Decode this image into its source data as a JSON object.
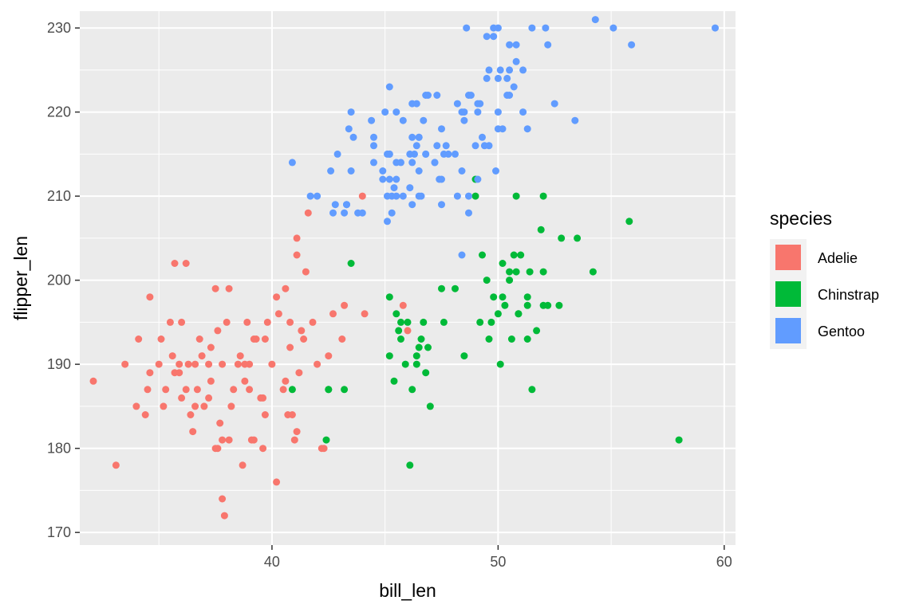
{
  "chart_data": {
    "type": "scatter",
    "xlabel": "bill_len",
    "ylabel": "flipper_len",
    "xlim": [
      31.5,
      60.5
    ],
    "ylim": [
      168.5,
      232
    ],
    "x_ticks": [
      40,
      50,
      60
    ],
    "y_ticks": [
      170,
      180,
      190,
      200,
      210,
      220,
      230
    ],
    "grid": true,
    "legend": {
      "title": "species",
      "position": "right"
    },
    "series": [
      {
        "name": "Adelie",
        "color": "#F8766D",
        "points": [
          [
            32.1,
            188
          ],
          [
            33.1,
            178
          ],
          [
            33.5,
            190
          ],
          [
            34.0,
            185
          ],
          [
            34.1,
            193
          ],
          [
            34.4,
            184
          ],
          [
            34.5,
            187
          ],
          [
            34.6,
            198
          ],
          [
            34.6,
            189
          ],
          [
            35.0,
            190
          ],
          [
            35.1,
            193
          ],
          [
            35.2,
            185
          ],
          [
            35.3,
            187
          ],
          [
            35.5,
            195
          ],
          [
            35.6,
            191
          ],
          [
            35.7,
            189
          ],
          [
            35.9,
            190
          ],
          [
            36.0,
            195
          ],
          [
            36.0,
            186
          ],
          [
            36.2,
            187
          ],
          [
            36.2,
            202
          ],
          [
            36.3,
            190
          ],
          [
            36.4,
            184
          ],
          [
            36.5,
            182
          ],
          [
            36.6,
            185
          ],
          [
            36.7,
            187
          ],
          [
            36.8,
            193
          ],
          [
            37.0,
            185
          ],
          [
            37.2,
            190
          ],
          [
            37.3,
            192
          ],
          [
            37.5,
            199
          ],
          [
            37.6,
            194
          ],
          [
            37.7,
            183
          ],
          [
            37.8,
            181
          ],
          [
            37.8,
            174
          ],
          [
            37.9,
            172
          ],
          [
            38.0,
            195
          ],
          [
            38.1,
            181
          ],
          [
            38.2,
            185
          ],
          [
            38.5,
            190
          ],
          [
            38.6,
            191
          ],
          [
            38.8,
            188
          ],
          [
            39.0,
            190
          ],
          [
            39.2,
            181
          ],
          [
            39.3,
            193
          ],
          [
            39.5,
            186
          ],
          [
            39.7,
            184
          ],
          [
            39.8,
            195
          ],
          [
            40.0,
            190
          ],
          [
            40.2,
            176
          ],
          [
            40.3,
            196
          ],
          [
            40.5,
            187
          ],
          [
            40.6,
            188
          ],
          [
            40.8,
            195
          ],
          [
            40.9,
            184
          ],
          [
            41.0,
            181
          ],
          [
            41.1,
            205
          ],
          [
            41.3,
            194
          ],
          [
            41.5,
            201
          ],
          [
            41.8,
            195
          ],
          [
            42.0,
            190
          ],
          [
            42.2,
            180
          ],
          [
            42.5,
            191
          ],
          [
            42.7,
            196
          ],
          [
            43.2,
            197
          ],
          [
            44.1,
            196
          ],
          [
            41.1,
            182
          ],
          [
            37.6,
            180
          ],
          [
            40.2,
            198
          ],
          [
            41.2,
            189
          ],
          [
            36.6,
            190
          ],
          [
            38.9,
            195
          ],
          [
            39.0,
            187
          ],
          [
            40.6,
            199
          ],
          [
            40.7,
            184
          ],
          [
            41.4,
            193
          ],
          [
            37.3,
            188
          ],
          [
            35.9,
            189
          ],
          [
            39.6,
            186
          ],
          [
            38.7,
            178
          ],
          [
            36.9,
            191
          ],
          [
            37.2,
            186
          ],
          [
            39.1,
            181
          ],
          [
            38.3,
            187
          ],
          [
            41.1,
            203
          ],
          [
            44.0,
            210
          ],
          [
            46.0,
            194
          ],
          [
            45.8,
            197
          ],
          [
            39.6,
            180
          ],
          [
            39.7,
            193
          ],
          [
            35.7,
            202
          ],
          [
            41.6,
            208
          ],
          [
            42.3,
            180
          ],
          [
            43.1,
            193
          ],
          [
            37.8,
            190
          ],
          [
            38.1,
            199
          ],
          [
            38.8,
            190
          ],
          [
            40.8,
            192
          ],
          [
            39.2,
            193
          ],
          [
            37.5,
            180
          ]
        ]
      },
      {
        "name": "Chinstrap",
        "color": "#00BA38",
        "points": [
          [
            46.5,
            192
          ],
          [
            50.0,
            196
          ],
          [
            51.3,
            193
          ],
          [
            45.4,
            188
          ],
          [
            52.7,
            197
          ],
          [
            45.2,
            198
          ],
          [
            46.1,
            178
          ],
          [
            51.3,
            197
          ],
          [
            46.0,
            195
          ],
          [
            51.3,
            198
          ],
          [
            46.6,
            193
          ],
          [
            51.7,
            194
          ],
          [
            47.0,
            185
          ],
          [
            52.0,
            201
          ],
          [
            45.9,
            190
          ],
          [
            50.5,
            201
          ],
          [
            50.3,
            197
          ],
          [
            58.0,
            181
          ],
          [
            46.4,
            190
          ],
          [
            49.2,
            195
          ],
          [
            42.4,
            181
          ],
          [
            48.5,
            191
          ],
          [
            43.2,
            187
          ],
          [
            50.6,
            193
          ],
          [
            46.7,
            195
          ],
          [
            52.0,
            197
          ],
          [
            50.5,
            200
          ],
          [
            49.5,
            200
          ],
          [
            46.4,
            191
          ],
          [
            52.8,
            205
          ],
          [
            40.9,
            187
          ],
          [
            54.2,
            201
          ],
          [
            42.5,
            187
          ],
          [
            51.0,
            203
          ],
          [
            49.7,
            195
          ],
          [
            47.5,
            199
          ],
          [
            47.6,
            195
          ],
          [
            52.0,
            210
          ],
          [
            46.9,
            192
          ],
          [
            53.5,
            205
          ],
          [
            49.0,
            210
          ],
          [
            46.2,
            187
          ],
          [
            50.9,
            196
          ],
          [
            45.5,
            196
          ],
          [
            50.9,
            196
          ],
          [
            50.8,
            210
          ],
          [
            50.1,
            190
          ],
          [
            49.0,
            212
          ],
          [
            51.5,
            187
          ],
          [
            49.8,
            198
          ],
          [
            48.1,
            199
          ],
          [
            51.4,
            201
          ],
          [
            45.7,
            193
          ],
          [
            50.7,
            203
          ],
          [
            42.5,
            187
          ],
          [
            52.2,
            197
          ],
          [
            45.2,
            191
          ],
          [
            49.3,
            203
          ],
          [
            50.2,
            202
          ],
          [
            45.6,
            194
          ],
          [
            51.9,
            206
          ],
          [
            46.8,
            189
          ],
          [
            45.7,
            195
          ],
          [
            55.8,
            207
          ],
          [
            43.5,
            202
          ],
          [
            49.6,
            193
          ],
          [
            50.8,
            201
          ],
          [
            50.2,
            198
          ]
        ]
      },
      {
        "name": "Gentoo",
        "color": "#619CFF",
        "points": [
          [
            46.1,
            211
          ],
          [
            50.0,
            230
          ],
          [
            48.7,
            210
          ],
          [
            50.0,
            218
          ],
          [
            47.6,
            215
          ],
          [
            46.5,
            210
          ],
          [
            45.4,
            211
          ],
          [
            46.7,
            219
          ],
          [
            43.3,
            209
          ],
          [
            46.8,
            215
          ],
          [
            40.9,
            214
          ],
          [
            49.0,
            216
          ],
          [
            45.5,
            214
          ],
          [
            48.4,
            213
          ],
          [
            45.8,
            210
          ],
          [
            49.3,
            217
          ],
          [
            42.0,
            210
          ],
          [
            49.2,
            221
          ],
          [
            46.2,
            209
          ],
          [
            48.7,
            222
          ],
          [
            50.2,
            218
          ],
          [
            45.1,
            215
          ],
          [
            46.5,
            213
          ],
          [
            46.3,
            215
          ],
          [
            42.9,
            215
          ],
          [
            46.1,
            215
          ],
          [
            44.5,
            216
          ],
          [
            47.8,
            215
          ],
          [
            48.2,
            210
          ],
          [
            50.0,
            220
          ],
          [
            47.3,
            222
          ],
          [
            42.8,
            209
          ],
          [
            45.1,
            207
          ],
          [
            59.6,
            230
          ],
          [
            49.1,
            220
          ],
          [
            48.4,
            220
          ],
          [
            42.6,
            213
          ],
          [
            44.4,
            219
          ],
          [
            44.0,
            208
          ],
          [
            48.7,
            208
          ],
          [
            42.7,
            208
          ],
          [
            49.6,
            225
          ],
          [
            45.3,
            210
          ],
          [
            49.6,
            216
          ],
          [
            50.5,
            222
          ],
          [
            43.6,
            217
          ],
          [
            45.5,
            210
          ],
          [
            50.5,
            225
          ],
          [
            44.9,
            213
          ],
          [
            45.2,
            215
          ],
          [
            46.6,
            210
          ],
          [
            48.5,
            220
          ],
          [
            45.1,
            210
          ],
          [
            50.1,
            225
          ],
          [
            46.5,
            217
          ],
          [
            45.0,
            220
          ],
          [
            43.8,
            208
          ],
          [
            45.5,
            220
          ],
          [
            43.2,
            208
          ],
          [
            50.4,
            224
          ],
          [
            45.3,
            208
          ],
          [
            46.2,
            221
          ],
          [
            45.7,
            214
          ],
          [
            54.3,
            231
          ],
          [
            45.8,
            219
          ],
          [
            49.8,
            230
          ],
          [
            46.2,
            214
          ],
          [
            49.5,
            229
          ],
          [
            43.5,
            220
          ],
          [
            50.7,
            223
          ],
          [
            47.7,
            216
          ],
          [
            46.4,
            221
          ],
          [
            48.2,
            221
          ],
          [
            46.5,
            217
          ],
          [
            46.4,
            216
          ],
          [
            48.6,
            230
          ],
          [
            47.5,
            209
          ],
          [
            51.1,
            220
          ],
          [
            45.2,
            215
          ],
          [
            45.2,
            223
          ],
          [
            49.1,
            212
          ],
          [
            52.5,
            221
          ],
          [
            47.4,
            212
          ],
          [
            50.0,
            224
          ],
          [
            44.9,
            212
          ],
          [
            50.8,
            228
          ],
          [
            43.4,
            218
          ],
          [
            51.3,
            218
          ],
          [
            47.5,
            212
          ],
          [
            52.1,
            230
          ],
          [
            47.5,
            218
          ],
          [
            52.2,
            228
          ],
          [
            45.5,
            212
          ],
          [
            49.5,
            224
          ],
          [
            44.5,
            214
          ],
          [
            50.8,
            226
          ],
          [
            49.4,
            216
          ],
          [
            46.9,
            222
          ],
          [
            48.4,
            203
          ],
          [
            51.1,
            225
          ],
          [
            48.5,
            219
          ],
          [
            55.9,
            228
          ],
          [
            47.2,
            214
          ],
          [
            49.1,
            221
          ],
          [
            47.3,
            216
          ],
          [
            46.8,
            222
          ],
          [
            41.7,
            210
          ],
          [
            53.4,
            219
          ],
          [
            43.3,
            209
          ],
          [
            48.1,
            215
          ],
          [
            50.5,
            228
          ],
          [
            49.8,
            229
          ],
          [
            43.5,
            213
          ],
          [
            51.5,
            230
          ],
          [
            46.2,
            217
          ],
          [
            55.1,
            230
          ],
          [
            44.5,
            217
          ],
          [
            48.8,
            222
          ],
          [
            47.2,
            214
          ],
          [
            46.8,
            215
          ],
          [
            50.4,
            222
          ],
          [
            45.2,
            212
          ],
          [
            49.9,
            213
          ]
        ]
      }
    ]
  }
}
